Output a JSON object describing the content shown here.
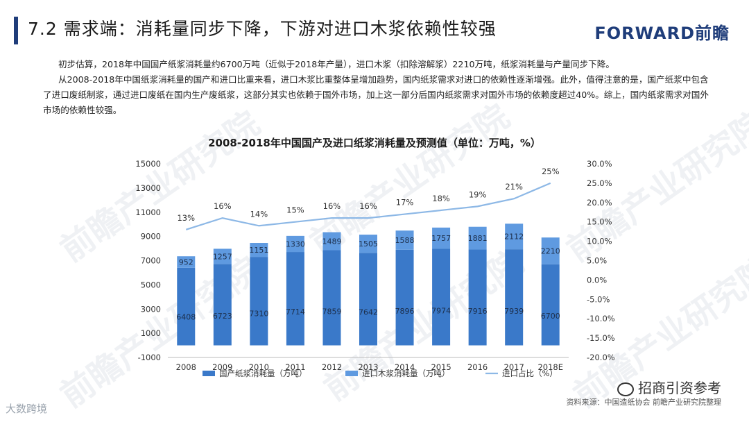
{
  "header": {
    "title": "7.2 需求端：消耗量同步下降，下游对进口木浆依赖性较强",
    "brand": "FORWARD前瞻"
  },
  "intro": {
    "p1": "初步估算，2018年中国国产纸浆消耗量约6700万吨（近似于2018年产量），进口木浆（扣除溶解浆）2210万吨，纸浆消耗量与产量同步下降。",
    "p2": "从2008-2018年中国纸浆消耗量的国产和进口比重来看，进口木浆比重整体呈增加趋势，国内纸浆需求对进口的依赖性逐渐增强。此外，值得注意的是，国产纸浆中包含了进口废纸制浆，通过进口废纸在国内生产废纸浆，这部分其实也依赖于国外市场，加上这一部分后国内纸浆需求对国外市场的依赖度超过40%。综上，国内纸浆需求对国外市场的依赖性较强。"
  },
  "watermark": "前瞻产业研究院",
  "chart_data": {
    "type": "bar",
    "title": "2008-2018年中国国产及进口纸浆消耗量及预测值（单位：万吨，%）",
    "categories": [
      "2008",
      "2009",
      "2010",
      "2011",
      "2012",
      "2013",
      "2014",
      "2015",
      "2016",
      "2017",
      "2018E"
    ],
    "series": [
      {
        "name": "国产纸浆消耗量（万吨）",
        "type": "bar",
        "stack": "total",
        "color": "#3a79c9",
        "values": [
          6408,
          6723,
          7310,
          7714,
          7859,
          7642,
          7896,
          7974,
          7916,
          7939,
          6700
        ]
      },
      {
        "name": "进口木浆消耗量（万吨）",
        "type": "bar",
        "stack": "total",
        "color": "#5f9ae0",
        "values": [
          952,
          1257,
          1151,
          1330,
          1489,
          1505,
          1588,
          1757,
          1881,
          2112,
          2210
        ]
      },
      {
        "name": "进口占比（%）",
        "type": "line",
        "axis": "right",
        "color": "#8db8e6",
        "values": [
          13,
          16,
          14,
          15,
          16,
          16,
          17,
          18,
          19,
          21,
          25
        ],
        "labels": [
          "13%",
          "16%",
          "14%",
          "15%",
          "16%",
          "16%",
          "17%",
          "18%",
          "19%",
          "21%",
          "25%"
        ]
      }
    ],
    "ylim": [
      -1000,
      15000
    ],
    "yticks": [
      "15000",
      "13000",
      "11000",
      "9000",
      "7000",
      "5000",
      "3000",
      "1000",
      "-1000"
    ],
    "y2lim": [
      -20,
      30
    ],
    "y2ticks": [
      "30.0%",
      "25.0%",
      "20.0%",
      "15.0%",
      "10.0%",
      "5.0%",
      "0.0%",
      "-5.0%",
      "-10.0%",
      "-15.0%",
      "-20.0%"
    ],
    "legend": "bottom",
    "grid": false
  },
  "footer": {
    "source": "资料来源：中国造纸协会  前瞻产业研究院整理",
    "wechat": "招商引资参考",
    "bottom_logo": "大数跨境"
  }
}
